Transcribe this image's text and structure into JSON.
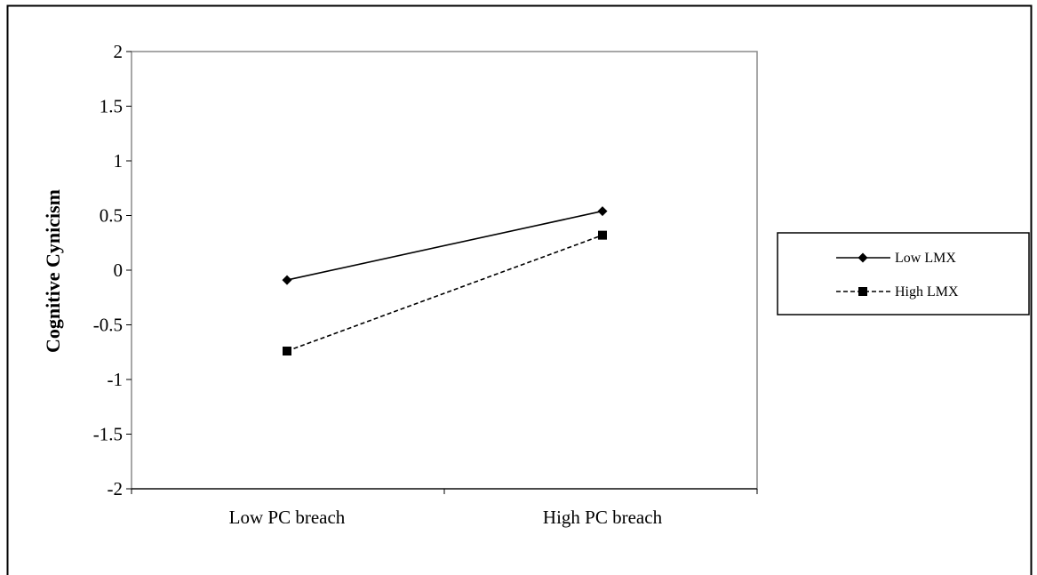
{
  "chart_data": {
    "type": "line",
    "title": "",
    "xlabel": "",
    "ylabel": "Cognitive Cynicism",
    "categories": [
      "Low PC breach",
      "High PC breach"
    ],
    "ylim": [
      -2,
      2
    ],
    "yticks": [
      2,
      1.5,
      1,
      0.5,
      0,
      -0.5,
      -1,
      -1.5,
      -2
    ],
    "ytick_labels": [
      "2",
      "1.5",
      "1",
      "0.5",
      "0",
      "-0.5",
      "-1",
      "-1.5",
      "-2"
    ],
    "grid": false,
    "legend_position": "right",
    "series": [
      {
        "name": "Low LMX",
        "values": [
          -0.09,
          0.54
        ],
        "marker": "diamond",
        "line_style": "solid",
        "color": "#000000"
      },
      {
        "name": "High LMX",
        "values": [
          -0.74,
          0.32
        ],
        "marker": "square",
        "line_style": "dashed",
        "color": "#000000"
      }
    ]
  }
}
